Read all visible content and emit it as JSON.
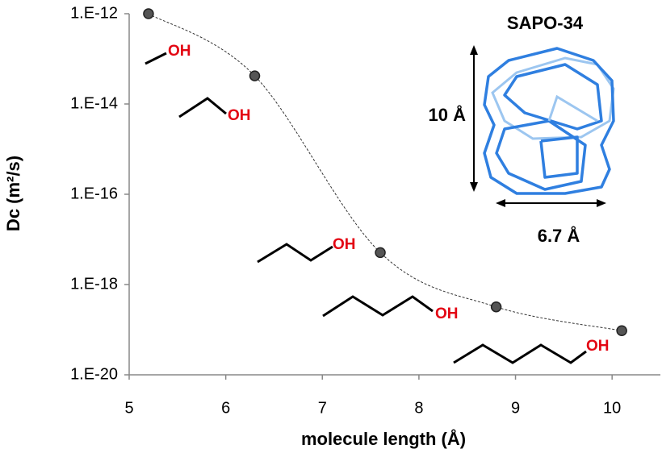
{
  "chart_data": {
    "type": "line",
    "x_label": "molecule length (Å)",
    "y_label": "Dc (m²/s)",
    "x": [
      5.2,
      6.3,
      7.6,
      8.8,
      10.1
    ],
    "values": [
      1e-12,
      4.2e-14,
      5.1e-18,
      3.2e-19,
      9.5e-20
    ],
    "color": "#555555",
    "line_style": "dotted",
    "log_y": true,
    "xlim": [
      5,
      10.5
    ],
    "xticks": [
      5,
      6,
      7,
      8,
      9,
      10
    ],
    "ylim": [
      1e-20,
      1e-12
    ],
    "yticks": [
      {
        "value": 1e-12,
        "label": "1.E-12"
      },
      {
        "value": 1e-14,
        "label": "1.E-14"
      },
      {
        "value": 1e-16,
        "label": "1.E-16"
      },
      {
        "value": 1e-18,
        "label": "1.E-18"
      },
      {
        "value": 1e-20,
        "label": "1.E-20"
      }
    ],
    "annotations": {
      "framework": "SAPO-34",
      "height": "10 Å",
      "width": "6.7 Å",
      "groups": [
        "OH",
        "OH",
        "OH",
        "OH",
        "OH"
      ]
    }
  }
}
